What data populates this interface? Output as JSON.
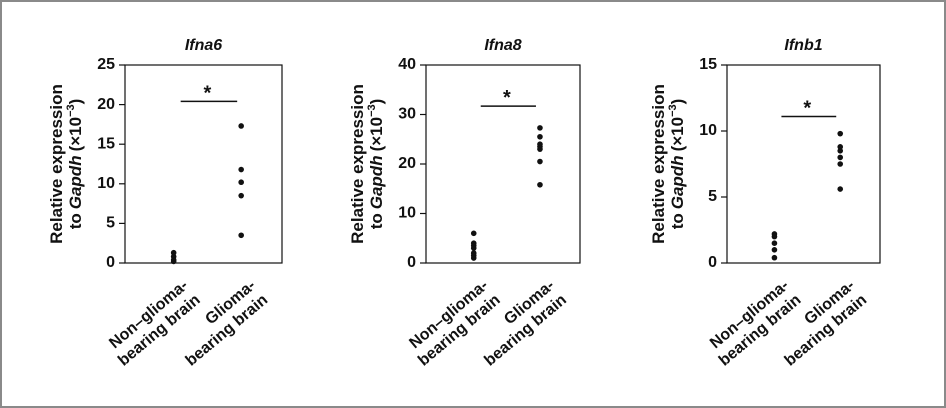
{
  "chart_data": [
    {
      "type": "strip",
      "title": "Ifna6",
      "y_label_parts": [
        "Relative expression",
        "to",
        "Gapdh",
        "(×10",
        "−3",
        ")"
      ],
      "categories": [
        [
          "Non–glioma-",
          "bearing brain"
        ],
        [
          "Glioma-",
          "bearing brain"
        ]
      ],
      "values": [
        [
          1.3,
          0.8,
          0.4,
          0.2
        ],
        [
          17.3,
          11.8,
          10.2,
          8.5,
          3.5
        ]
      ],
      "color": "#111111",
      "ylim": [
        0,
        25
      ],
      "yticks": [
        0,
        5,
        10,
        15,
        20,
        25
      ],
      "annotation": {
        "text": "*",
        "y": 20.4
      }
    },
    {
      "type": "strip",
      "title": "Ifna8",
      "y_label_parts": [
        "Relative expression",
        "to",
        "Gapdh",
        "(×10",
        "−3",
        ")"
      ],
      "categories": [
        [
          "Non–glioma-",
          "bearing brain"
        ],
        [
          "Glioma-",
          "bearing brain"
        ]
      ],
      "values": [
        [
          6,
          4,
          3.5,
          3,
          2,
          1.5,
          1
        ],
        [
          27.3,
          25.5,
          24,
          23.5,
          23,
          20.5,
          15.8
        ]
      ],
      "color": "#111111",
      "ylim": [
        0,
        40
      ],
      "yticks": [
        0,
        10,
        20,
        30,
        40
      ],
      "annotation": {
        "text": "*",
        "y": 31.7
      }
    },
    {
      "type": "strip",
      "title": "Ifnb1",
      "y_label_parts": [
        "Relative expression",
        "to",
        "Gapdh",
        "(×10",
        "−3",
        ")"
      ],
      "categories": [
        [
          "Non–glioma-",
          "bearing brain"
        ],
        [
          "Glioma-",
          "bearing brain"
        ]
      ],
      "values": [
        [
          2.2,
          2.0,
          1.5,
          1.0,
          0.4
        ],
        [
          9.8,
          8.8,
          8.5,
          8.0,
          7.5,
          5.6
        ]
      ],
      "color": "#111111",
      "ylim": [
        0,
        15
      ],
      "yticks": [
        0,
        5,
        10,
        15
      ],
      "annotation": {
        "text": "*",
        "y": 11.1
      }
    }
  ]
}
